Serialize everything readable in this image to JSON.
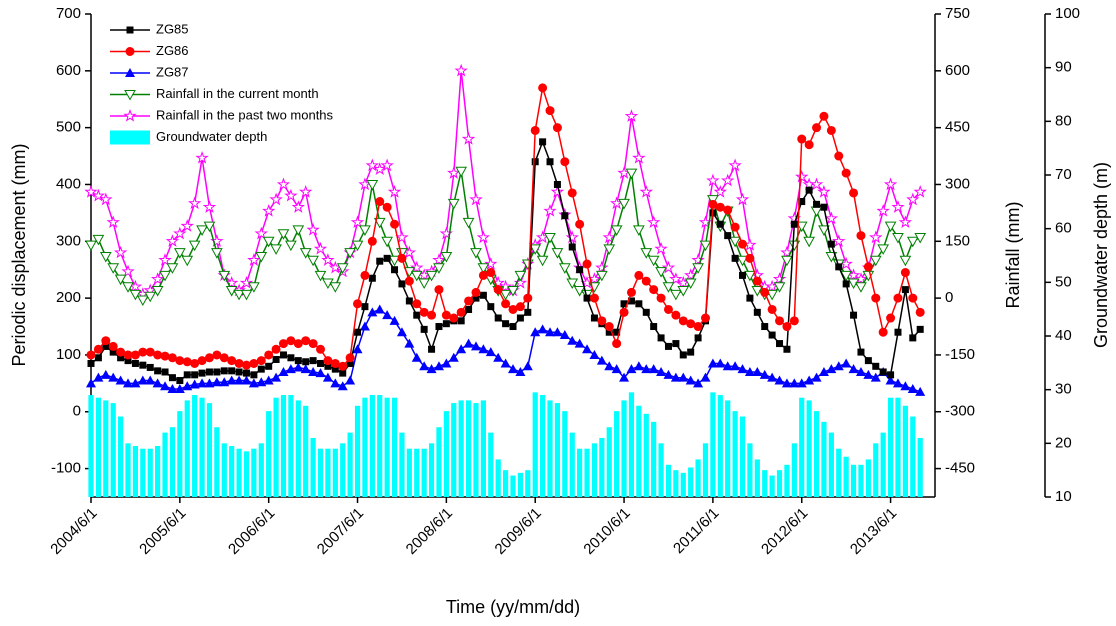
{
  "chart_data": {
    "type": "line",
    "x_label": "Time (yy/mm/dd)",
    "y_label": "Periodic displacement (mm)",
    "y2_label": "Rainfall (mm)",
    "y3_label": "Groundwater depth (m)",
    "x": [
      "2004/6/1",
      "2004/7/1",
      "2004/8/1",
      "2004/9/1",
      "2004/10/1",
      "2004/11/1",
      "2004/12/1",
      "2005/1/1",
      "2005/2/1",
      "2005/3/1",
      "2005/4/1",
      "2005/5/1",
      "2005/6/1",
      "2005/7/1",
      "2005/8/1",
      "2005/9/1",
      "2005/10/1",
      "2005/11/1",
      "2005/12/1",
      "2006/1/1",
      "2006/2/1",
      "2006/3/1",
      "2006/4/1",
      "2006/5/1",
      "2006/6/1",
      "2006/7/1",
      "2006/8/1",
      "2006/9/1",
      "2006/10/1",
      "2006/11/1",
      "2006/12/1",
      "2007/1/1",
      "2007/2/1",
      "2007/3/1",
      "2007/4/1",
      "2007/5/1",
      "2007/6/1",
      "2007/7/1",
      "2007/8/1",
      "2007/9/1",
      "2007/10/1",
      "2007/11/1",
      "2007/12/1",
      "2008/1/1",
      "2008/2/1",
      "2008/3/1",
      "2008/4/1",
      "2008/5/1",
      "2008/6/1",
      "2008/7/1",
      "2008/8/1",
      "2008/9/1",
      "2008/10/1",
      "2008/11/1",
      "2008/12/1",
      "2009/1/1",
      "2009/2/1",
      "2009/3/1",
      "2009/4/1",
      "2009/5/1",
      "2009/6/1",
      "2009/7/1",
      "2009/8/1",
      "2009/9/1",
      "2009/10/1",
      "2009/11/1",
      "2009/12/1",
      "2010/1/1",
      "2010/2/1",
      "2010/3/1",
      "2010/4/1",
      "2010/5/1",
      "2010/6/1",
      "2010/7/1",
      "2010/8/1",
      "2010/9/1",
      "2010/10/1",
      "2010/11/1",
      "2010/12/1",
      "2011/1/1",
      "2011/2/1",
      "2011/3/1",
      "2011/4/1",
      "2011/5/1",
      "2011/6/1",
      "2011/7/1",
      "2011/8/1",
      "2011/9/1",
      "2011/10/1",
      "2011/11/1",
      "2011/12/1",
      "2012/1/1",
      "2012/2/1",
      "2012/3/1",
      "2012/4/1",
      "2012/5/1",
      "2012/6/1",
      "2012/7/1",
      "2012/8/1",
      "2012/9/1",
      "2012/10/1",
      "2012/11/1",
      "2012/12/1",
      "2013/1/1",
      "2013/2/1",
      "2013/3/1",
      "2013/4/1",
      "2013/5/1",
      "2013/6/1",
      "2013/7/1",
      "2013/8/1",
      "2013/9/1",
      "2013/10/1"
    ],
    "xlim": [
      "2004/6/1",
      "2013/12/1"
    ],
    "xticks": [
      "2004/6/1",
      "2005/6/1",
      "2006/6/1",
      "2007/6/1",
      "2008/6/1",
      "2009/6/1",
      "2010/6/1",
      "2011/6/1",
      "2012/6/1",
      "2013/6/1"
    ],
    "ylim": [
      -150,
      700
    ],
    "yticks": [
      -100,
      0,
      100,
      200,
      300,
      400,
      500,
      600,
      700
    ],
    "y2lim": [
      -525,
      750
    ],
    "y2ticks": [
      -450,
      -300,
      -150,
      0,
      150,
      300,
      450,
      600,
      750
    ],
    "y3lim": [
      10,
      100
    ],
    "y3ticks": [
      10,
      20,
      30,
      40,
      50,
      60,
      70,
      80,
      90,
      100
    ],
    "series": [
      {
        "name": "ZG85",
        "color": "#000000",
        "marker": "square",
        "axis": "y",
        "values": [
          85,
          95,
          115,
          105,
          95,
          90,
          85,
          82,
          78,
          72,
          70,
          60,
          55,
          65,
          65,
          68,
          70,
          70,
          72,
          72,
          70,
          68,
          65,
          75,
          80,
          92,
          100,
          95,
          90,
          88,
          90,
          85,
          80,
          75,
          68,
          85,
          140,
          185,
          235,
          265,
          270,
          250,
          225,
          195,
          170,
          145,
          110,
          150,
          155,
          160,
          160,
          180,
          200,
          205,
          185,
          165,
          155,
          150,
          165,
          175,
          440,
          475,
          440,
          400,
          345,
          290,
          250,
          200,
          165,
          155,
          140,
          140,
          190,
          195,
          190,
          175,
          150,
          130,
          115,
          120,
          100,
          105,
          130,
          160,
          350,
          330,
          310,
          270,
          240,
          200,
          175,
          150,
          135,
          120,
          110,
          330,
          370,
          390,
          365,
          360,
          295,
          255,
          225,
          170,
          105,
          90,
          80,
          70,
          65,
          140,
          215,
          130,
          145
        ]
      },
      {
        "name": "ZG86",
        "color": "#ff0000",
        "marker": "circle",
        "axis": "y",
        "values": [
          100,
          110,
          125,
          115,
          105,
          100,
          100,
          105,
          105,
          100,
          98,
          95,
          90,
          88,
          85,
          90,
          95,
          100,
          95,
          90,
          85,
          82,
          85,
          90,
          100,
          110,
          120,
          125,
          120,
          125,
          120,
          110,
          90,
          85,
          80,
          95,
          190,
          240,
          300,
          370,
          360,
          330,
          270,
          230,
          190,
          175,
          170,
          215,
          170,
          165,
          175,
          195,
          210,
          240,
          245,
          215,
          190,
          180,
          185,
          200,
          495,
          570,
          530,
          500,
          440,
          385,
          330,
          260,
          200,
          160,
          150,
          120,
          175,
          210,
          240,
          230,
          215,
          200,
          180,
          170,
          160,
          155,
          150,
          165,
          365,
          360,
          355,
          325,
          295,
          270,
          230,
          210,
          180,
          160,
          150,
          160,
          480,
          470,
          500,
          520,
          495,
          450,
          420,
          385,
          310,
          255,
          200,
          140,
          165,
          200,
          245,
          200,
          175
        ]
      },
      {
        "name": "ZG87",
        "color": "#0000ff",
        "marker": "triangle",
        "axis": "y",
        "values": [
          50,
          60,
          65,
          60,
          55,
          50,
          50,
          55,
          55,
          50,
          45,
          40,
          40,
          45,
          48,
          50,
          50,
          52,
          52,
          55,
          55,
          55,
          50,
          52,
          55,
          60,
          70,
          75,
          78,
          75,
          70,
          68,
          60,
          50,
          45,
          55,
          110,
          150,
          175,
          180,
          170,
          160,
          140,
          120,
          95,
          80,
          75,
          80,
          85,
          95,
          110,
          120,
          115,
          110,
          105,
          95,
          85,
          75,
          70,
          80,
          140,
          145,
          140,
          140,
          135,
          125,
          120,
          110,
          100,
          90,
          80,
          75,
          60,
          75,
          80,
          75,
          75,
          70,
          65,
          60,
          60,
          55,
          50,
          60,
          85,
          85,
          80,
          80,
          75,
          70,
          70,
          65,
          60,
          55,
          50,
          50,
          50,
          55,
          60,
          70,
          75,
          80,
          85,
          75,
          70,
          65,
          60,
          70,
          55,
          50,
          45,
          40,
          35
        ]
      },
      {
        "name": "Rainfall in the current month",
        "color": "#008000",
        "marker": "triangle-down",
        "axis": "y2",
        "values": [
          140,
          155,
          110,
          80,
          50,
          30,
          10,
          -5,
          5,
          20,
          60,
          80,
          120,
          100,
          140,
          180,
          190,
          120,
          60,
          20,
          10,
          10,
          30,
          110,
          150,
          130,
          170,
          140,
          180,
          120,
          100,
          60,
          40,
          30,
          80,
          120,
          140,
          180,
          300,
          200,
          150,
          100,
          120,
          70,
          60,
          40,
          60,
          80,
          110,
          250,
          335,
          200,
          120,
          80,
          50,
          20,
          10,
          20,
          60,
          90,
          130,
          100,
          160,
          120,
          80,
          40,
          20,
          10,
          30,
          60,
          130,
          180,
          250,
          330,
          180,
          120,
          100,
          70,
          30,
          10,
          20,
          40,
          80,
          140,
          260,
          190,
          230,
          150,
          100,
          60,
          20,
          10,
          10,
          30,
          100,
          140,
          190,
          150,
          230,
          180,
          110,
          90,
          60,
          40,
          30,
          60,
          100,
          130,
          190,
          160,
          100,
          150,
          160
        ]
      },
      {
        "name": "Rainfall in the past two months",
        "color": "#ff00ff",
        "marker": "star",
        "axis": "y2",
        "values": [
          280,
          270,
          260,
          200,
          120,
          70,
          30,
          10,
          20,
          50,
          100,
          150,
          170,
          190,
          250,
          370,
          240,
          150,
          60,
          40,
          20,
          40,
          100,
          170,
          230,
          260,
          300,
          270,
          240,
          280,
          180,
          130,
          100,
          80,
          70,
          120,
          200,
          300,
          350,
          340,
          350,
          280,
          160,
          120,
          80,
          60,
          70,
          100,
          170,
          330,
          600,
          420,
          260,
          160,
          90,
          40,
          30,
          20,
          40,
          90,
          140,
          160,
          230,
          280,
          220,
          160,
          80,
          40,
          50,
          80,
          160,
          250,
          330,
          480,
          370,
          280,
          200,
          130,
          80,
          50,
          40,
          60,
          100,
          200,
          310,
          280,
          310,
          350,
          260,
          140,
          60,
          30,
          30,
          50,
          120,
          210,
          320,
          300,
          300,
          280,
          210,
          150,
          90,
          60,
          50,
          80,
          160,
          230,
          300,
          240,
          200,
          260,
          280
        ]
      },
      {
        "name": "Groundwater depth",
        "color": "#00ffff",
        "marker": "bar",
        "axis": "y3",
        "values": [
          29,
          28.5,
          28,
          27.5,
          25,
          20,
          19.5,
          19,
          19,
          19.5,
          22,
          23,
          26,
          28,
          29,
          28.5,
          27.5,
          23,
          20,
          19.5,
          19,
          18.5,
          19,
          20,
          26,
          28.5,
          29,
          29,
          28,
          27,
          21,
          19,
          19,
          19,
          20,
          22,
          27,
          28.5,
          29,
          29,
          28.5,
          28.5,
          22,
          19,
          19,
          19,
          20,
          23,
          26,
          27.5,
          28,
          28,
          27.5,
          28,
          22,
          17,
          15,
          14,
          14.5,
          15,
          29.5,
          29,
          28,
          27.5,
          26,
          22,
          19,
          19,
          20,
          21,
          23,
          26,
          28,
          29.5,
          27,
          25.5,
          24,
          20,
          16,
          15,
          14.5,
          15.5,
          17,
          20,
          29.5,
          29,
          28,
          26,
          25,
          20,
          17,
          15,
          14,
          15,
          16,
          20,
          28.5,
          28,
          26,
          24,
          22,
          19,
          17.5,
          16,
          16,
          17,
          20,
          22,
          28.5,
          28.5,
          27,
          25,
          21
        ]
      }
    ]
  }
}
